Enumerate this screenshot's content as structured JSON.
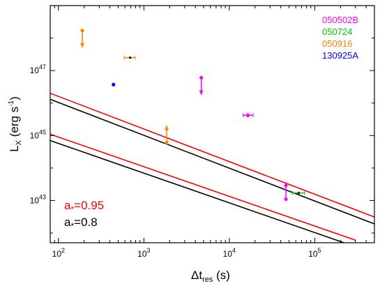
{
  "chart_data": {
    "type": "scatter",
    "xlabel_main": "Δt",
    "xlabel_sub": "res",
    "xlabel_unit": " (s)",
    "ylabel_main": "L",
    "ylabel_sub": "X",
    "ylabel_unit_pre": " (erg s",
    "ylabel_unit_exp": "-1",
    "ylabel_unit_post": ")",
    "x_scale": "log",
    "y_scale": "log",
    "xlim": [
      80,
      500000
    ],
    "ylim": [
      5e+41,
      1e+49
    ],
    "x_ticks": [
      {
        "value": 100,
        "base": "10",
        "exp": "2"
      },
      {
        "value": 1000,
        "base": "10",
        "exp": "3"
      },
      {
        "value": 10000,
        "base": "10",
        "exp": "4"
      },
      {
        "value": 100000,
        "base": "10",
        "exp": "5"
      }
    ],
    "y_ticks": [
      {
        "value": 1e+43,
        "base": "10",
        "exp": "43"
      },
      {
        "value": 1e+45,
        "base": "10",
        "exp": "45"
      },
      {
        "value": 1e+47,
        "base": "10",
        "exp": "47"
      }
    ],
    "legend_placement": "top-right",
    "series": [
      {
        "name": "050502B",
        "color": "#ff00ff",
        "points": [
          {
            "x": 4700,
            "y": 6e+46,
            "marker": "circle",
            "arrow": "down"
          },
          {
            "x": 16500,
            "y": 4.2e+45,
            "marker": "circle",
            "xerr": [
              14500,
              19000
            ],
            "yerr": [
              3.6e+45,
              4.9e+45
            ]
          },
          {
            "x": 46000,
            "y": 1.1e+43,
            "marker": "circle",
            "arrow": "up"
          }
        ]
      },
      {
        "name": "050724",
        "color": "#00cc00",
        "points": [
          {
            "x": 65000,
            "y": 1.7e+43,
            "marker": "dash",
            "xerr": [
              55000,
              76000
            ],
            "yerr": [
              1.5e+43,
              1.9e+43
            ]
          }
        ]
      },
      {
        "name": "050916",
        "color": "#ff8000",
        "points": [
          {
            "x": 190,
            "y": 1.7e+48,
            "marker": "circle",
            "arrow": "down"
          },
          {
            "x": 690,
            "y": 2.5e+47,
            "marker": "dash",
            "xerr": [
              590,
              790
            ],
            "yerr": [
              2.3e+47,
              2.7e+47
            ]
          },
          {
            "x": 1850,
            "y": 6e+44,
            "marker": "circle",
            "arrow": "up"
          }
        ]
      },
      {
        "name": "130925A",
        "color": "#0000ff",
        "points": [
          {
            "x": 440,
            "y": 3.7e+46,
            "marker": "circle"
          }
        ]
      }
    ],
    "lines": [
      {
        "name": "a*=0.95",
        "color": "#ff0000",
        "points": [
          [
            80,
            2e+46
          ],
          [
            500000,
            3.1e+42
          ]
        ]
      },
      {
        "name": "a*=0.8",
        "color": "#000000",
        "points": [
          [
            80,
            1.3e+46
          ],
          [
            500000,
            1.9e+42
          ]
        ]
      },
      {
        "name": "a*=0.95",
        "color": "#ff0000",
        "points": [
          [
            80,
            1.1e+45
          ],
          [
            300000,
            6e+41
          ]
        ]
      },
      {
        "name": "a*=0.8",
        "color": "#000000",
        "points": [
          [
            80,
            7e+44
          ],
          [
            220000,
            5e+41
          ]
        ]
      }
    ],
    "params": [
      {
        "symbol": "a",
        "sub": "*",
        "text": "=0.95",
        "color": "#ff0000"
      },
      {
        "symbol": "a",
        "sub": "*",
        "text": "=0.8",
        "color": "#000000"
      }
    ]
  }
}
